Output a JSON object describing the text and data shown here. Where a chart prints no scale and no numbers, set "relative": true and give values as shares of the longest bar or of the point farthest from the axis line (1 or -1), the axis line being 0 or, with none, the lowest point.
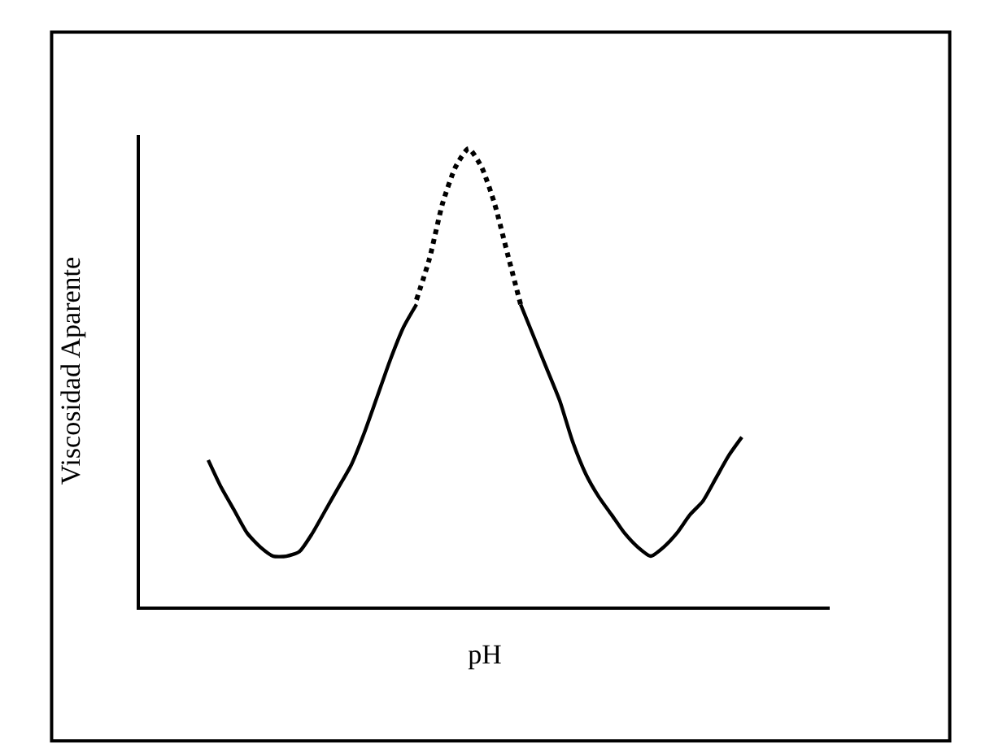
{
  "chart_data": {
    "type": "line",
    "relative": true,
    "xlabel": "pH",
    "ylabel": "Viscosidad Aparente",
    "marker": "none",
    "categories": [
      null,
      null,
      null,
      null,
      null,
      null,
      null,
      null,
      null,
      null,
      null,
      null,
      null,
      null,
      null,
      null,
      null,
      null,
      null,
      null,
      null,
      null,
      null,
      null,
      null,
      null,
      null,
      null,
      null,
      null,
      null,
      null,
      null,
      null,
      null,
      null,
      null,
      null,
      null,
      null,
      null,
      null
    ],
    "series": [
      {
        "color": "#000000",
        "line_style": "solid",
        "values": [
          0.32,
          0.26,
          0.21,
          0.16,
          0.13,
          0.11,
          0.11,
          0.12,
          0.16,
          0.21,
          0.26,
          0.31,
          0.38,
          0.46,
          0.54,
          0.61,
          0.66,
          null,
          null,
          null,
          null,
          null,
          null,
          null,
          null,
          null,
          null,
          null,
          null,
          null,
          null,
          null,
          null,
          null,
          null,
          null,
          null,
          null,
          null,
          null,
          null,
          null
        ]
      },
      {
        "color": "#000000",
        "line_style": "dotted",
        "values": [
          null,
          null,
          null,
          null,
          null,
          null,
          null,
          null,
          null,
          null,
          null,
          null,
          null,
          null,
          null,
          null,
          0.67,
          0.76,
          0.88,
          0.96,
          1,
          0.96,
          0.88,
          0.77,
          0.66,
          null,
          null,
          null,
          null,
          null,
          null,
          null,
          null,
          null,
          null,
          null,
          null,
          null,
          null,
          null,
          null,
          null
        ]
      },
      {
        "color": "#000000",
        "line_style": "solid",
        "values": [
          null,
          null,
          null,
          null,
          null,
          null,
          null,
          null,
          null,
          null,
          null,
          null,
          null,
          null,
          null,
          null,
          null,
          null,
          null,
          null,
          null,
          null,
          null,
          null,
          0.66,
          0.59,
          0.52,
          0.45,
          0.36,
          0.29,
          0.24,
          0.2,
          0.16,
          0.13,
          0.11,
          0.13,
          0.16,
          0.2,
          0.23,
          0.28,
          0.33,
          0.37
        ]
      }
    ]
  }
}
